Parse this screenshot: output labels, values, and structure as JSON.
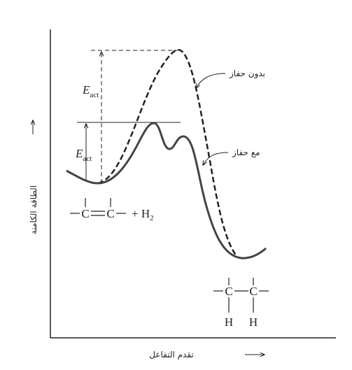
{
  "axes": {
    "y_label": "الطاقة الكامنة",
    "x_label": "تقدم التفاعل"
  },
  "curves": [
    {
      "label": "بدون حفاز"
    },
    {
      "label": "مع حفاز"
    }
  ],
  "activation": [
    {
      "symbol": "E",
      "subscript": "act"
    },
    {
      "symbol": "E",
      "subscript": "act"
    }
  ],
  "reactant": {
    "atoms": [
      "C",
      "C"
    ],
    "plus": "+ H",
    "subscript": "2"
  },
  "product": {
    "atoms": [
      "C",
      "C"
    ],
    "hydrogens": [
      "H",
      "H"
    ]
  }
}
